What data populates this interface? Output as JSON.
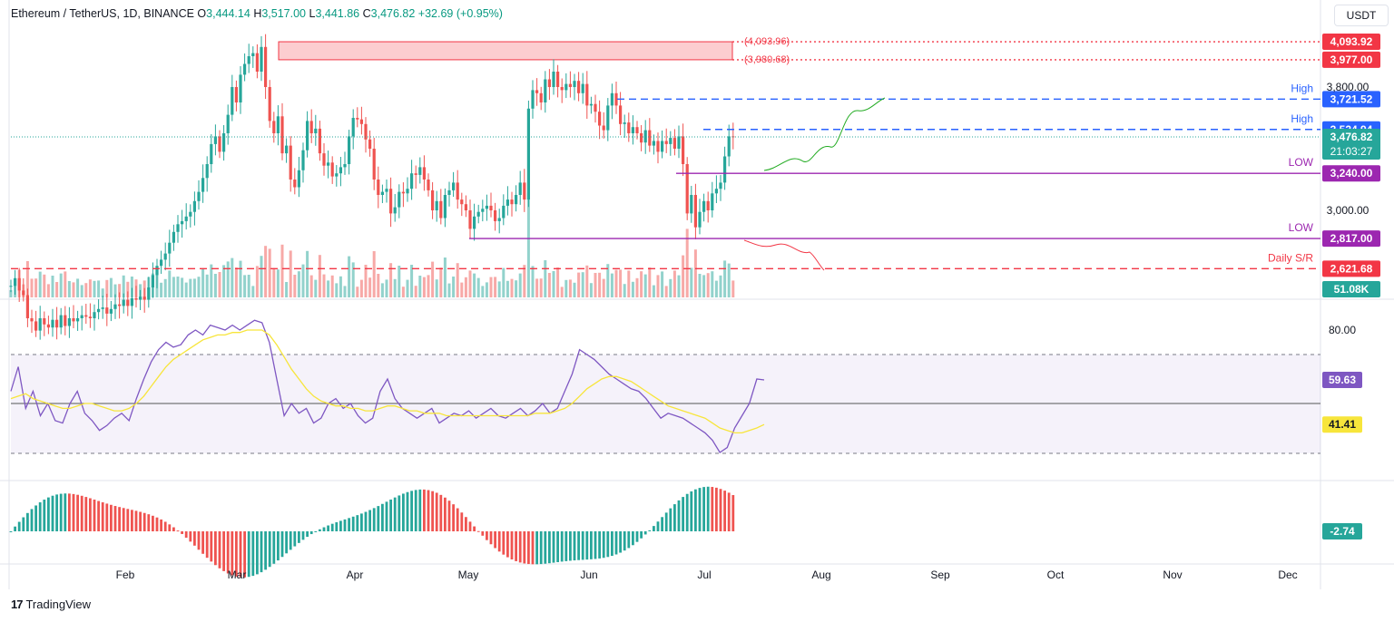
{
  "header": {
    "symbol": "Ethereum / TetherUS, 1D, BINANCE",
    "open_label": "O",
    "open": "3,444.14",
    "high_label": "H",
    "high": "3,517.00",
    "low_label": "L",
    "low": "3,441.86",
    "close_label": "C",
    "close": "3,476.82",
    "change": "+32.69 (+0.95%)",
    "currency": "USDT"
  },
  "brand": {
    "logo": "17",
    "name": "TradingView"
  },
  "colors": {
    "up": "#26a69a",
    "down": "#ef5350",
    "blue": "#2962ff",
    "purple": "#9c27b0",
    "red": "#f23645",
    "rsi": "#7e57c2",
    "rsi_ma": "#f7e53b",
    "green_path": "#22ab22"
  },
  "chart_data": [
    {
      "type": "candlestick",
      "panel": "price",
      "y_axis_ticks": [
        "3,800.00",
        "3,000.00"
      ],
      "x_axis_ticks": [
        "Feb",
        "Mar",
        "Apr",
        "May",
        "Jun",
        "Jul",
        "Aug",
        "Sep",
        "Oct",
        "Nov",
        "Dec"
      ],
      "closes_approx": [
        2510,
        2560,
        2480,
        2450,
        2300,
        2280,
        2220,
        2300,
        2260,
        2240,
        2290,
        2240,
        2320,
        2250,
        2300,
        2280,
        2300,
        2320,
        2310,
        2300,
        2340,
        2360,
        2370,
        2330,
        2360,
        2390,
        2380,
        2420,
        2380,
        2430,
        2420,
        2440,
        2420,
        2500,
        2580,
        2640,
        2680,
        2720,
        2790,
        2860,
        2910,
        2930,
        2960,
        2990,
        3060,
        3120,
        3210,
        3300,
        3430,
        3480,
        3380,
        3500,
        3620,
        3800,
        3700,
        3880,
        3950,
        4000,
        4020,
        3900,
        4060,
        3800,
        3580,
        3500,
        3610,
        3370,
        3420,
        3200,
        3150,
        3260,
        3390,
        3580,
        3500,
        3530,
        3370,
        3290,
        3310,
        3220,
        3240,
        3280,
        3300,
        3480,
        3600,
        3590,
        3560,
        3460,
        3400,
        3200,
        3100,
        3120,
        3140,
        2980,
        3020,
        3120,
        3110,
        3140,
        3240,
        3230,
        3280,
        3200,
        3130,
        3000,
        3060,
        2950,
        3100,
        3130,
        3180,
        3070,
        3040,
        3000,
        2880,
        2960,
        2990,
        3010,
        3030,
        3000,
        2930,
        2950,
        3030,
        3070,
        3040,
        3100,
        3180,
        3070,
        3660,
        3780,
        3760,
        3700,
        3850,
        3800,
        3900,
        3800,
        3780,
        3820,
        3800,
        3840,
        3760,
        3820,
        3680,
        3690,
        3640,
        3550,
        3520,
        3680,
        3760,
        3680,
        3560,
        3570,
        3500,
        3540,
        3500,
        3440,
        3520,
        3420,
        3450,
        3380,
        3450,
        3430,
        3470,
        3400,
        3480,
        3300,
        2980,
        3100,
        2890,
        2990,
        3060,
        3000,
        3110,
        3140,
        3180,
        3350,
        3480,
        3476.82
      ],
      "volume_last": "51.08K",
      "levels": [
        {
          "label": "",
          "value": 4093.92,
          "tag": "4,093.92",
          "zone_tag": "(4,093.96)",
          "style": "dotted",
          "color": "#f23645"
        },
        {
          "label": "",
          "value": 3977.0,
          "tag": "3,977.00",
          "zone_tag": "(3,980.68)",
          "style": "dotted",
          "color": "#f23645"
        },
        {
          "label": "High",
          "value": 3721.52,
          "tag": "3,721.52",
          "style": "dashed",
          "color": "#2962ff"
        },
        {
          "label": "High",
          "value": 3524.94,
          "tag": "3,524.94",
          "style": "dashed",
          "color": "#2962ff"
        },
        {
          "label": "LOW",
          "value": 3240.0,
          "tag": "3,240.00",
          "style": "solid",
          "color": "#9c27b0"
        },
        {
          "label": "LOW",
          "value": 2817.0,
          "tag": "2,817.00",
          "style": "solid",
          "color": "#9c27b0"
        },
        {
          "label": "Daily S/R",
          "value": 2621.68,
          "tag": "2,621.68",
          "style": "dashed",
          "color": "#f23645"
        }
      ],
      "last_price_tag": "3,476.82",
      "countdown": "21:03:27"
    },
    {
      "type": "line",
      "panel": "rsi",
      "y_axis_ticks": [
        "80.00"
      ],
      "series": [
        {
          "values": [
            55,
            65,
            48,
            55,
            45,
            50,
            43,
            42,
            50,
            55,
            46,
            43,
            39,
            41,
            44,
            46,
            43,
            52,
            60,
            67,
            72,
            75,
            73,
            74,
            78,
            80,
            78,
            82,
            81,
            80,
            82,
            80,
            82,
            84,
            83,
            75,
            60,
            45,
            50,
            46,
            48,
            42,
            44,
            50,
            52,
            48,
            50,
            45,
            42,
            44,
            55,
            60,
            52,
            48,
            46,
            44,
            46,
            48,
            42,
            44,
            46,
            45,
            47,
            44,
            46,
            48,
            45,
            44,
            46,
            48,
            45,
            47,
            50,
            46,
            48,
            55,
            62,
            72,
            70,
            68,
            65,
            62,
            60,
            58,
            56,
            55,
            52,
            48,
            44,
            46,
            45,
            44,
            42,
            40,
            38,
            35,
            30,
            32,
            40,
            45,
            50,
            60,
            59.63
          ],
          "role": "RSI",
          "tag": "59.63"
        },
        {
          "values": [
            52,
            53,
            54,
            52,
            51,
            50,
            49,
            48,
            48,
            49,
            50,
            50,
            49,
            48,
            47,
            47,
            48,
            50,
            53,
            57,
            61,
            65,
            68,
            70,
            72,
            74,
            76,
            77,
            78,
            78,
            79,
            79,
            80,
            80,
            80,
            78,
            74,
            69,
            64,
            60,
            56,
            53,
            51,
            50,
            49,
            49,
            48,
            48,
            47,
            47,
            48,
            49,
            49,
            48,
            47,
            47,
            46,
            46,
            46,
            45,
            45,
            45,
            45,
            45,
            45,
            45,
            45,
            45,
            45,
            45,
            45,
            46,
            46,
            46,
            47,
            48,
            50,
            53,
            56,
            58,
            60,
            61,
            61,
            60,
            59,
            57,
            55,
            53,
            51,
            49,
            48,
            47,
            46,
            45,
            44,
            42,
            40,
            39,
            38,
            38,
            39,
            40,
            41.41
          ],
          "role": "RSI MA",
          "tag": "41.41"
        }
      ]
    },
    {
      "type": "bar",
      "panel": "histogram",
      "values_last_tag": "-2.74"
    }
  ]
}
